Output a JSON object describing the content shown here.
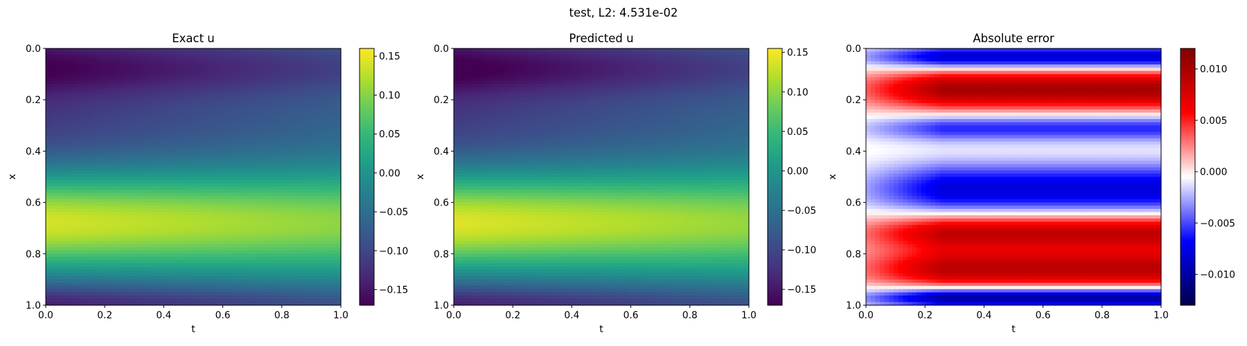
{
  "figure": {
    "suptitle": "test, L2: 4.531e-02"
  },
  "chart_data": [
    {
      "type": "heatmap",
      "title": "Exact u",
      "xlabel": "t",
      "ylabel": "x",
      "xlim": [
        0.0,
        1.0
      ],
      "ylim": [
        1.0,
        0.0
      ],
      "x_ticks": [
        "0.0",
        "0.2",
        "0.4",
        "0.6",
        "0.8",
        "1.0"
      ],
      "y_ticks": [
        "0.0",
        "0.2",
        "0.4",
        "0.6",
        "0.8",
        "1.0"
      ],
      "colormap": "viridis",
      "colorbar": {
        "range": [
          -0.17,
          0.16
        ],
        "ticks": [
          -0.15,
          -0.1,
          -0.05,
          0.0,
          0.05,
          0.1,
          0.15
        ],
        "tick_labels": [
          "−0.15",
          "−0.10",
          "−0.05",
          "0.00",
          "0.05",
          "0.10",
          "0.15"
        ]
      },
      "description_profile": {
        "x": [
          0.0,
          0.05,
          0.1,
          0.15,
          0.2,
          0.25,
          0.3,
          0.35,
          0.4,
          0.45,
          0.5,
          0.55,
          0.6,
          0.65,
          0.7,
          0.75,
          0.8,
          0.85,
          0.9,
          0.95,
          1.0
        ],
        "u_at_t0": [
          -0.12,
          -0.15,
          -0.16,
          -0.13,
          -0.09,
          -0.07,
          -0.05,
          -0.03,
          -0.01,
          0.03,
          0.08,
          0.12,
          0.14,
          0.15,
          0.15,
          0.13,
          0.1,
          0.05,
          -0.02,
          -0.09,
          -0.13
        ],
        "u_at_t1": [
          -0.1,
          -0.11,
          -0.1,
          -0.08,
          -0.07,
          -0.06,
          -0.05,
          -0.03,
          -0.01,
          0.01,
          0.04,
          0.07,
          0.09,
          0.1,
          0.1,
          0.09,
          0.07,
          0.03,
          -0.02,
          -0.07,
          -0.1
        ]
      }
    },
    {
      "type": "heatmap",
      "title": "Predicted u",
      "xlabel": "t",
      "ylabel": "x",
      "xlim": [
        0.0,
        1.0
      ],
      "ylim": [
        1.0,
        0.0
      ],
      "x_ticks": [
        "0.0",
        "0.2",
        "0.4",
        "0.6",
        "0.8",
        "1.0"
      ],
      "y_ticks": [
        "0.0",
        "0.2",
        "0.4",
        "0.6",
        "0.8",
        "1.0"
      ],
      "colormap": "viridis",
      "colorbar": {
        "range": [
          -0.17,
          0.155
        ],
        "ticks": [
          -0.15,
          -0.1,
          -0.05,
          0.0,
          0.05,
          0.1,
          0.15
        ],
        "tick_labels": [
          "−0.15",
          "−0.10",
          "−0.05",
          "0.00",
          "0.05",
          "0.10",
          "0.15"
        ]
      }
    },
    {
      "type": "heatmap",
      "title": "Absolute error",
      "xlabel": "t",
      "ylabel": "x",
      "xlim": [
        0.0,
        1.0
      ],
      "ylim": [
        1.0,
        0.0
      ],
      "x_ticks": [
        "0.0",
        "0.2",
        "0.4",
        "0.6",
        "0.8",
        "1.0"
      ],
      "y_ticks": [
        "0.0",
        "0.2",
        "0.4",
        "0.6",
        "0.8",
        "1.0"
      ],
      "colormap": "seismic",
      "colorbar": {
        "range": [
          -0.013,
          0.012
        ],
        "ticks": [
          -0.01,
          -0.005,
          0.0,
          0.005,
          0.01
        ],
        "tick_labels": [
          "−0.010",
          "−0.005",
          "0.000",
          "0.005",
          "0.010"
        ]
      },
      "bands": [
        {
          "x_range": [
            0.0,
            0.07
          ],
          "sign": "negative",
          "peak": -0.009
        },
        {
          "x_range": [
            0.1,
            0.22
          ],
          "sign": "positive",
          "peak": 0.01
        },
        {
          "x_range": [
            0.27,
            0.35
          ],
          "sign": "negative",
          "peak": -0.006
        },
        {
          "x_range": [
            0.47,
            0.63
          ],
          "sign": "negative",
          "peak": -0.008
        },
        {
          "x_range": [
            0.66,
            0.77
          ],
          "sign": "positive",
          "peak": 0.009
        },
        {
          "x_range": [
            0.8,
            0.92
          ],
          "sign": "positive",
          "peak": 0.009
        },
        {
          "x_range": [
            0.94,
            1.0
          ],
          "sign": "negative",
          "peak": -0.011
        }
      ]
    }
  ]
}
